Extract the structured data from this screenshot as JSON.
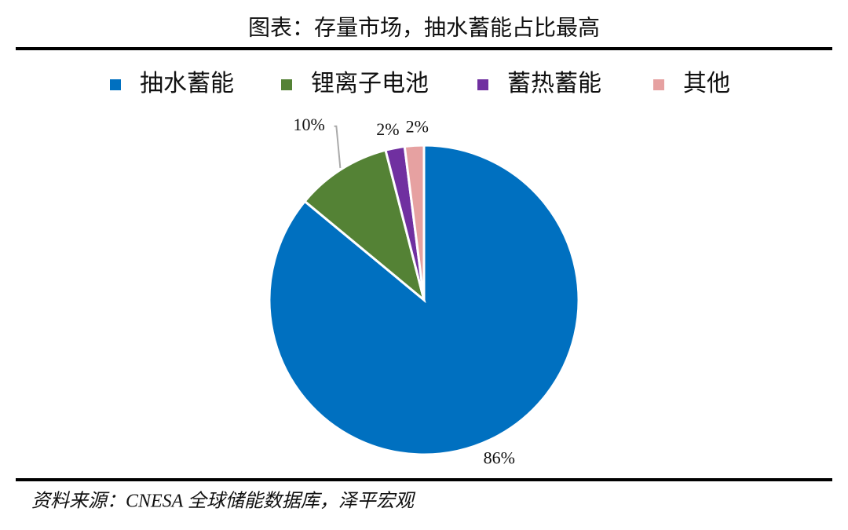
{
  "chart_data": {
    "type": "pie",
    "title": "图表：存量市场，抽水蓄能占比最高",
    "categories": [
      "抽水蓄能",
      "锂离子电池",
      "蓄热蓄能",
      "其他"
    ],
    "values": [
      86,
      10,
      2,
      2
    ],
    "value_labels": [
      "86%",
      "10%",
      "2%",
      "2%"
    ],
    "colors": [
      "#0070c0",
      "#548235",
      "#7030a0",
      "#e6a1a1"
    ],
    "legend": "top"
  },
  "source": "资料来源：CNESA 全球储能数据库，泽平宏观"
}
